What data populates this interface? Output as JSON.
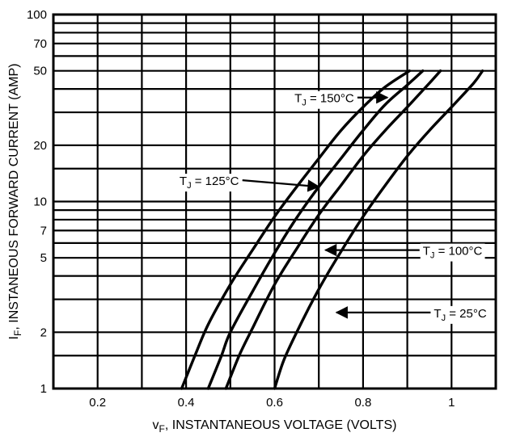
{
  "chart_data": {
    "type": "line",
    "title": "",
    "xlabel": {
      "main": "v",
      "sub": "F",
      "rest": ", INSTANTANEOUS VOLTAGE (VOLTS)"
    },
    "ylabel": {
      "main": "I",
      "sub": "F",
      "rest": ", INSTANEOUS FORWARD CURRENT (AMP)"
    },
    "xlim": [
      0.1,
      1.1
    ],
    "ylim": [
      1,
      100
    ],
    "yscale": "log",
    "grid": true,
    "x_ticks": [
      {
        "value": 0.2,
        "label": "0.2"
      },
      {
        "value": 0.4,
        "label": "0.4"
      },
      {
        "value": 0.6,
        "label": "0.6"
      },
      {
        "value": 0.8,
        "label": "0.8"
      },
      {
        "value": 1.0,
        "label": "1"
      }
    ],
    "x_grid": [
      0.1,
      0.2,
      0.3,
      0.4,
      0.5,
      0.6,
      0.7,
      0.8,
      0.9,
      1.0,
      1.1
    ],
    "y_ticks": [
      {
        "value": 1,
        "label": "1"
      },
      {
        "value": 2,
        "label": "2"
      },
      {
        "value": 5,
        "label": "5"
      },
      {
        "value": 7,
        "label": "7"
      },
      {
        "value": 10,
        "label": "10"
      },
      {
        "value": 20,
        "label": "20"
      },
      {
        "value": 50,
        "label": "50"
      },
      {
        "value": 70,
        "label": "70"
      },
      {
        "value": 100,
        "label": "100"
      }
    ],
    "y_grid": [
      1,
      1.5,
      2,
      3,
      4,
      5,
      6,
      7,
      8,
      9,
      10,
      15,
      20,
      30,
      40,
      50,
      60,
      70,
      80,
      90,
      100
    ],
    "series": [
      {
        "name": "T_J = 150°C",
        "label": {
          "t": "T",
          "sub": "J",
          "rest": " = 150°C"
        },
        "points": [
          [
            0.39,
            1
          ],
          [
            0.42,
            1.5
          ],
          [
            0.45,
            2.2
          ],
          [
            0.5,
            3.6
          ],
          [
            0.55,
            5.5
          ],
          [
            0.6,
            8.3
          ],
          [
            0.65,
            12
          ],
          [
            0.7,
            17
          ],
          [
            0.75,
            24
          ],
          [
            0.8,
            32
          ],
          [
            0.85,
            41
          ],
          [
            0.905,
            50
          ]
        ]
      },
      {
        "name": "T_J = 125°C",
        "label": {
          "t": "T",
          "sub": "J",
          "rest": " = 125°C"
        },
        "points": [
          [
            0.45,
            1
          ],
          [
            0.48,
            1.5
          ],
          [
            0.5,
            2
          ],
          [
            0.55,
            3.3
          ],
          [
            0.6,
            5.3
          ],
          [
            0.65,
            8.2
          ],
          [
            0.7,
            12
          ],
          [
            0.75,
            17
          ],
          [
            0.8,
            24
          ],
          [
            0.85,
            33
          ],
          [
            0.9,
            42
          ],
          [
            0.935,
            50
          ]
        ]
      },
      {
        "name": "T_J = 100°C",
        "label": {
          "t": "T",
          "sub": "J",
          "rest": " = 100°C"
        },
        "points": [
          [
            0.49,
            1
          ],
          [
            0.52,
            1.5
          ],
          [
            0.55,
            2.1
          ],
          [
            0.6,
            3.6
          ],
          [
            0.65,
            5.6
          ],
          [
            0.7,
            8.5
          ],
          [
            0.75,
            12.2
          ],
          [
            0.8,
            17.5
          ],
          [
            0.85,
            24
          ],
          [
            0.9,
            32
          ],
          [
            0.95,
            43
          ],
          [
            0.975,
            50
          ]
        ]
      },
      {
        "name": "T_J = 25°C",
        "label": {
          "t": "T",
          "sub": "J",
          "rest": " = 25°C"
        },
        "points": [
          [
            0.6,
            1
          ],
          [
            0.62,
            1.4
          ],
          [
            0.65,
            2
          ],
          [
            0.7,
            3.4
          ],
          [
            0.75,
            5.4
          ],
          [
            0.8,
            8.3
          ],
          [
            0.85,
            12.2
          ],
          [
            0.9,
            17.5
          ],
          [
            0.95,
            24
          ],
          [
            1.0,
            32
          ],
          [
            1.05,
            43
          ],
          [
            1.07,
            50
          ]
        ]
      }
    ],
    "annotations": [
      {
        "series": 0,
        "label_x": 0.645,
        "label_y": 36,
        "arrow_to": [
          0.855,
          36
        ]
      },
      {
        "series": 1,
        "label_x": 0.385,
        "label_y": 13,
        "arrow_to": [
          0.7,
          12
        ]
      },
      {
        "series": 2,
        "label_x": 0.935,
        "label_y": 5.5,
        "arrow_to": [
          0.715,
          5.5
        ]
      },
      {
        "series": 3,
        "label_x": 0.96,
        "label_y": 2.55,
        "arrow_to": [
          0.74,
          2.55
        ]
      }
    ]
  }
}
